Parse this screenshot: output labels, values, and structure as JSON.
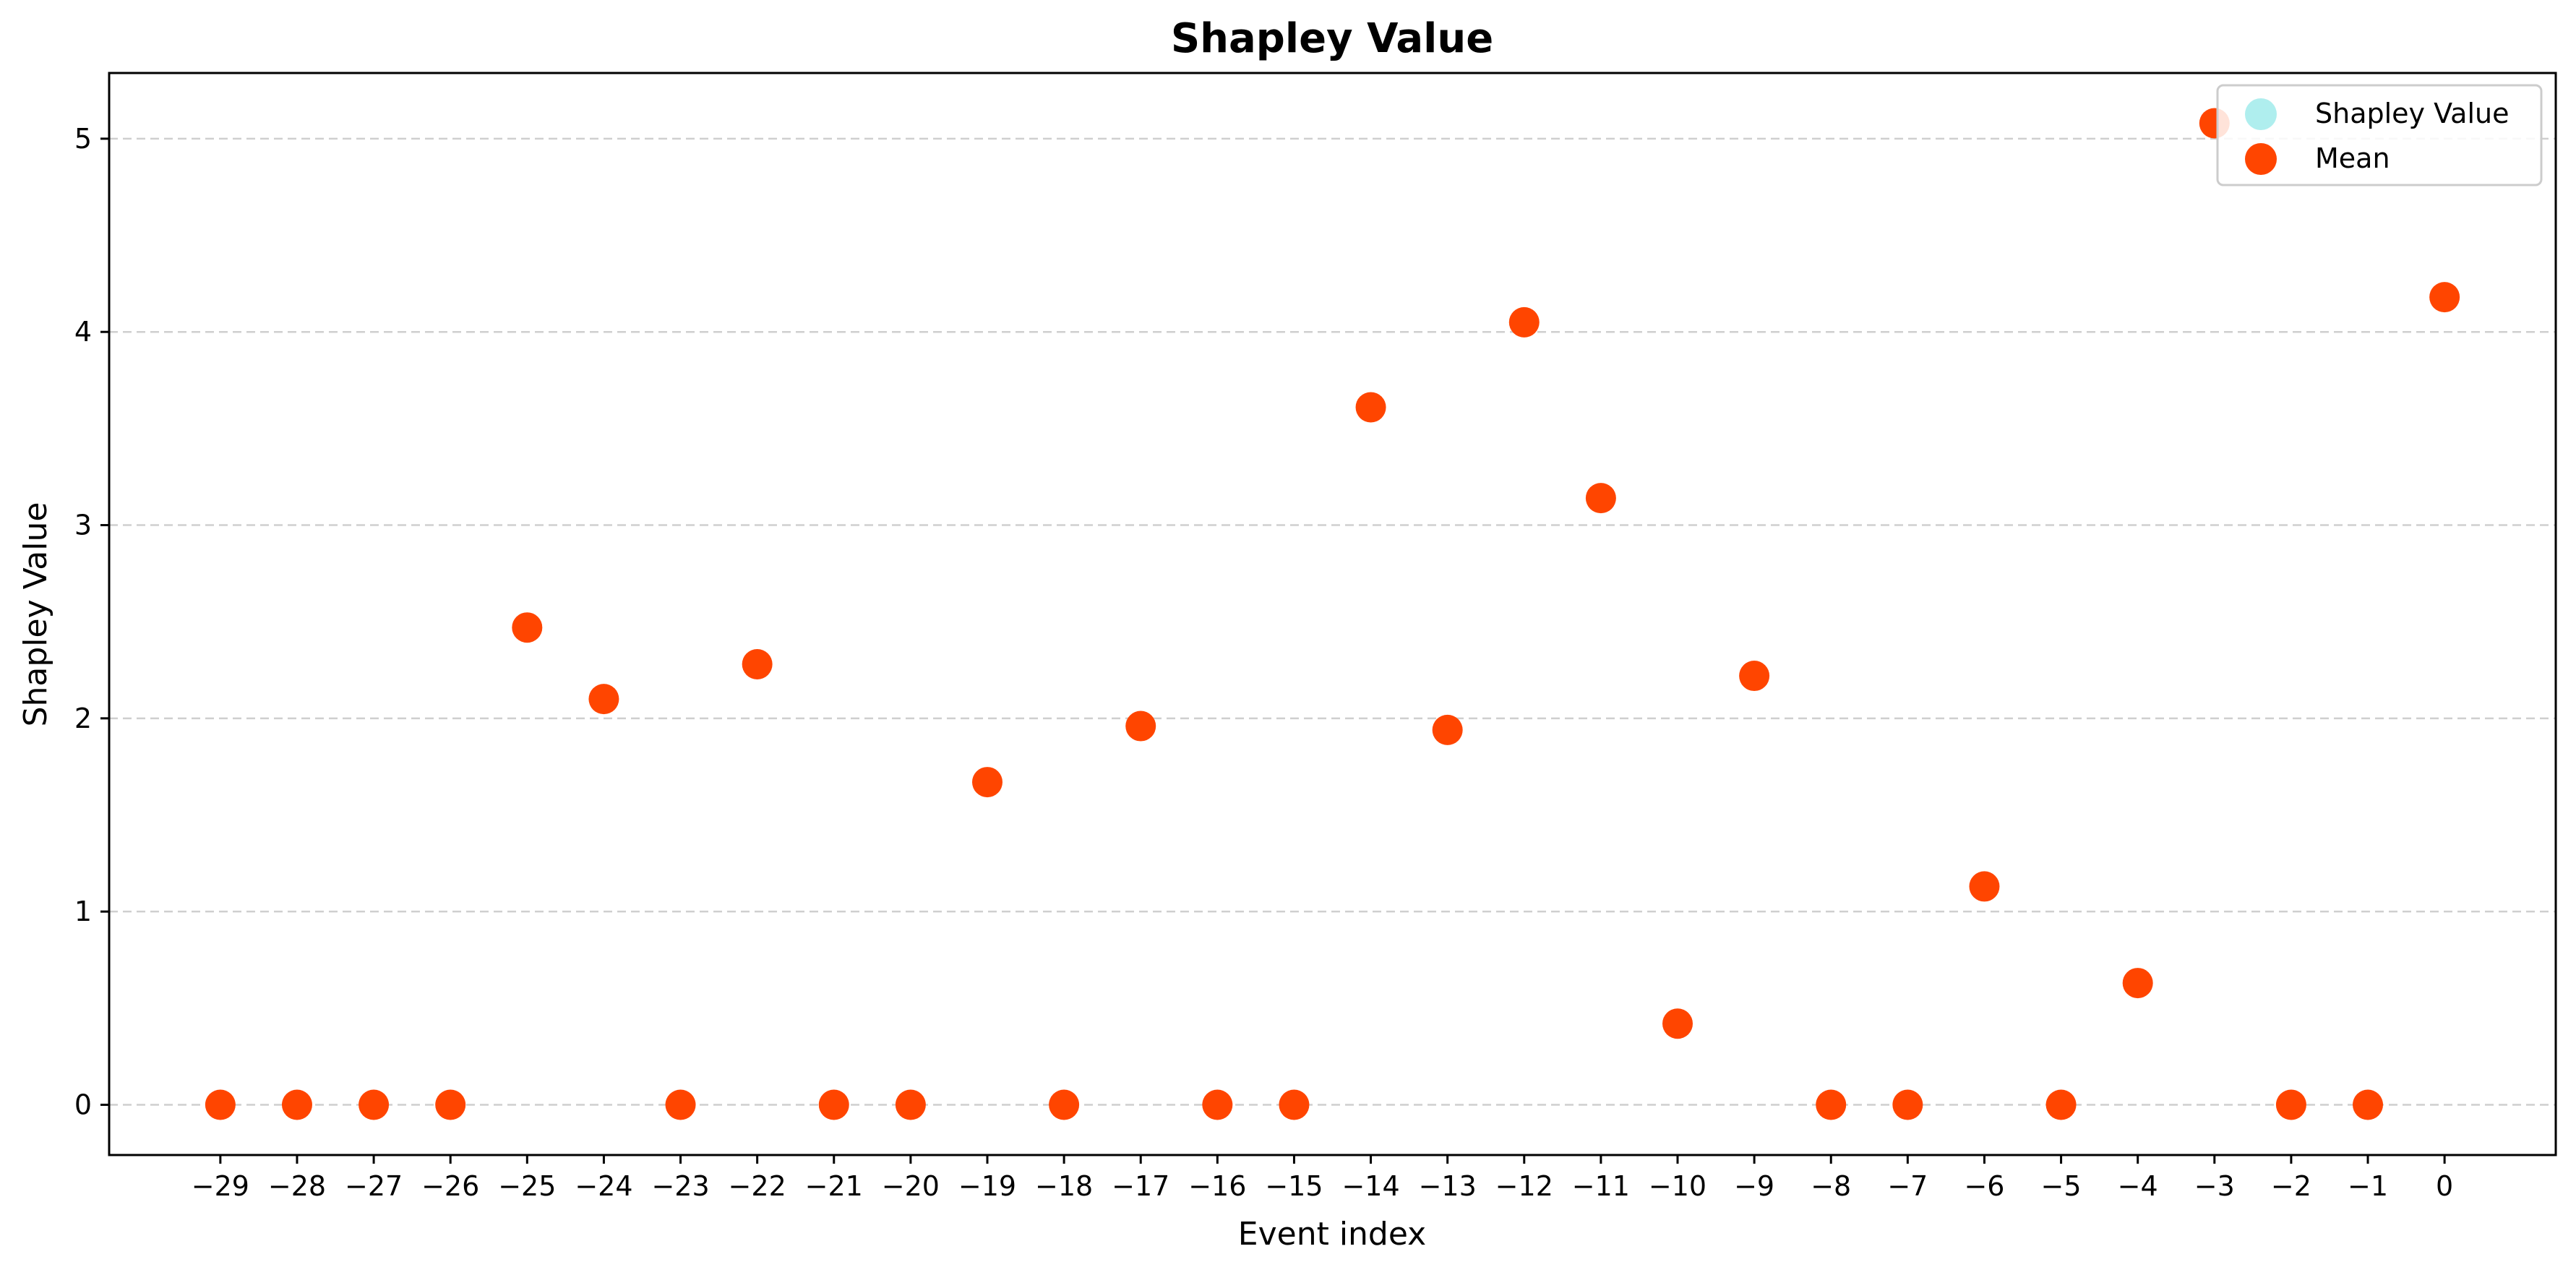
{
  "chart_data": {
    "type": "scatter",
    "title": "Shapley Value",
    "xlabel": "Event index",
    "ylabel": "Shapley Value",
    "x": [
      -29,
      -28,
      -27,
      -26,
      -25,
      -24,
      -23,
      -22,
      -21,
      -20,
      -19,
      -18,
      -17,
      -16,
      -15,
      -14,
      -13,
      -12,
      -11,
      -10,
      -9,
      -8,
      -7,
      -6,
      -5,
      -4,
      -3,
      -2,
      -1,
      0
    ],
    "xticks": [
      -29,
      -28,
      -27,
      -26,
      -25,
      -24,
      -23,
      -22,
      -21,
      -20,
      -19,
      -18,
      -17,
      -16,
      -15,
      -14,
      -13,
      -12,
      -11,
      -10,
      -9,
      -8,
      -7,
      -6,
      -5,
      -4,
      -3,
      -2,
      -1,
      0
    ],
    "yticks": [
      0,
      1,
      2,
      3,
      4,
      5
    ],
    "xlim": [
      -30.45,
      1.45
    ],
    "ylim": [
      -0.26,
      5.34
    ],
    "grid": "y, dashed",
    "legend_position": "top-right",
    "series": [
      {
        "name": "Shapley Value",
        "color": "#afeeee",
        "values": [
          0,
          0,
          0,
          0,
          2.47,
          2.1,
          0,
          2.28,
          0,
          0,
          1.67,
          0,
          1.96,
          0,
          0,
          3.61,
          1.94,
          4.05,
          3.14,
          0.42,
          2.22,
          0,
          0,
          1.13,
          0,
          0.63,
          5.08,
          0,
          0,
          4.18
        ]
      },
      {
        "name": "Mean",
        "color": "#ff4500",
        "values": [
          0,
          0,
          0,
          0,
          2.47,
          2.1,
          0,
          2.28,
          0,
          0,
          1.67,
          0,
          1.96,
          0,
          0,
          3.61,
          1.94,
          4.05,
          3.14,
          0.42,
          2.22,
          0,
          0,
          1.13,
          0,
          0.63,
          5.08,
          0,
          0,
          4.18
        ]
      }
    ]
  }
}
